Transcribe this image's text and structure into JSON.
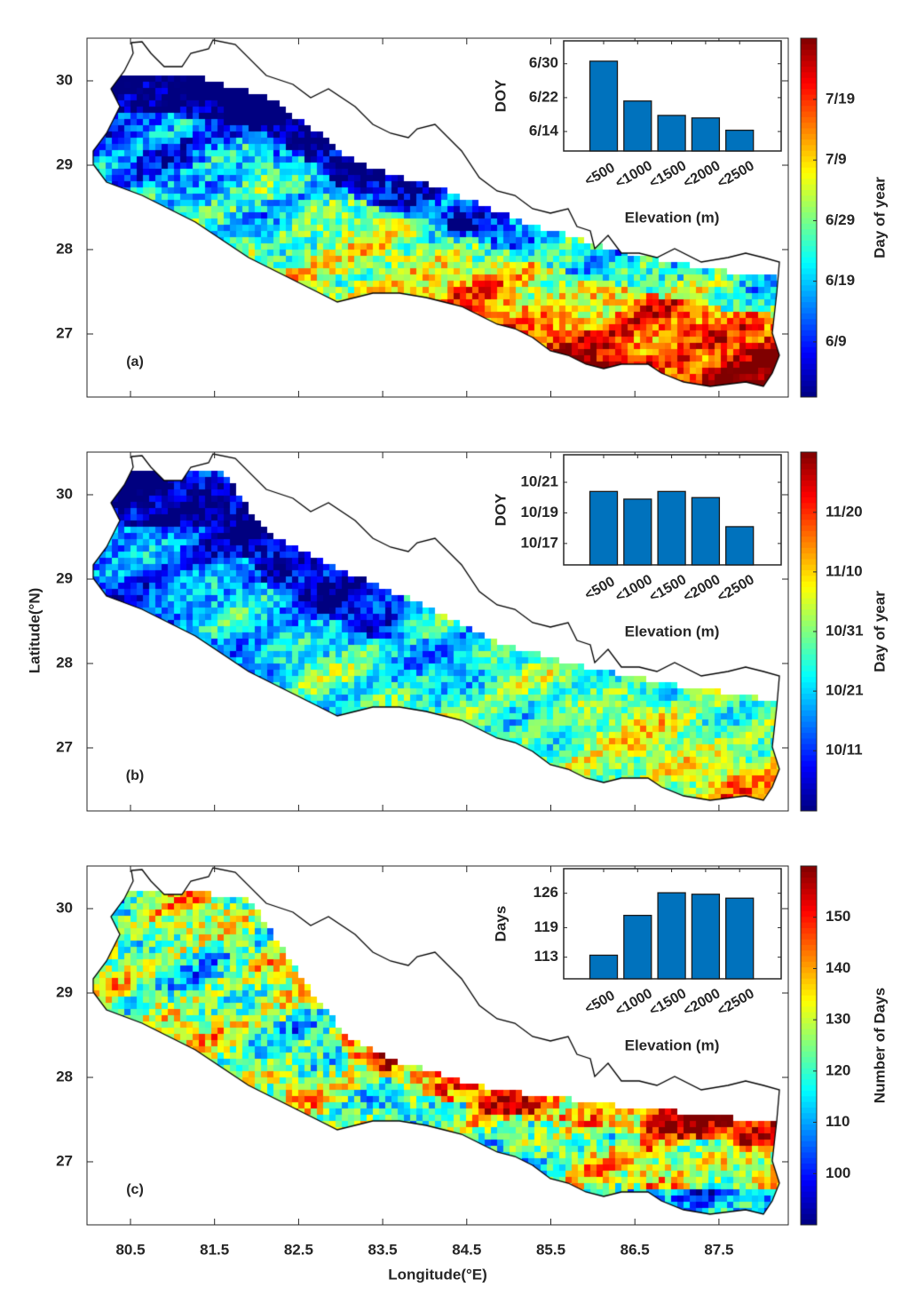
{
  "figure": {
    "ylabel": "Latitude(°N)",
    "xlabel": "Longitude(°E)",
    "lon_ticks": [
      "80.5",
      "81.5",
      "82.5",
      "83.5",
      "84.5",
      "85.5",
      "86.5",
      "87.5"
    ],
    "lat_ticks": [
      "30",
      "29",
      "28",
      "27"
    ],
    "colormap": "jet",
    "no_data_color": "#ffffff"
  },
  "chart_data": [
    {
      "panel_label": "(a)",
      "type": "bar",
      "categories": [
        "<500",
        "<1000",
        "<1500",
        "<2000",
        "<2500"
      ],
      "xlabel": "Elevation (m)",
      "ylabel": "DOY",
      "yticks": [
        "6/30",
        "6/22",
        "6/14"
      ],
      "values": [
        "6/30.6",
        "6/21.2",
        "6/17.8",
        "6/17.2",
        "6/14.3"
      ],
      "ylim": [
        "6/9.4",
        "7/5.4"
      ],
      "bar_color": "#0072BD",
      "map": {
        "type": "heatmap",
        "colorbar_label": "Day of year",
        "colorbar_ticks": [
          "7/19",
          "7/9",
          "6/29",
          "6/19",
          "6/9"
        ],
        "clim": [
          "5/30.9",
          "7/29.1"
        ]
      }
    },
    {
      "panel_label": "(b)",
      "type": "bar",
      "categories": [
        "<500",
        "<1000",
        "<1500",
        "<2000",
        "<2500"
      ],
      "xlabel": "Elevation (m)",
      "ylabel": "DOY",
      "yticks": [
        "10/21",
        "10/19",
        "10/17"
      ],
      "values": [
        "10/20.4",
        "10/19.9",
        "10/20.4",
        "10/20.0",
        "10/18.1"
      ],
      "ylim": [
        "10/15.6",
        "10/22.8"
      ],
      "bar_color": "#0072BD",
      "map": {
        "type": "heatmap",
        "colorbar_label": "Day of year",
        "colorbar_ticks": [
          "11/20",
          "11/10",
          "10/31",
          "10/21",
          "10/11"
        ],
        "clim": [
          "9/30.9",
          "11/30.1"
        ]
      }
    },
    {
      "panel_label": "(c)",
      "type": "bar",
      "categories": [
        "<500",
        "<1000",
        "<1500",
        "<2000",
        "<2500"
      ],
      "xlabel": "Elevation (m)",
      "ylabel": "Days",
      "yticks": [
        "126",
        "119",
        "113"
      ],
      "values": [
        113.4,
        121.5,
        126.1,
        125.8,
        125.0
      ],
      "ylim": [
        108.6,
        131
      ],
      "bar_color": "#0072BD",
      "map": {
        "type": "heatmap",
        "colorbar_label": "Number of Days",
        "colorbar_ticks": [
          "150",
          "140",
          "130",
          "120",
          "110",
          "100"
        ],
        "clim": [
          90,
          160
        ]
      }
    }
  ]
}
